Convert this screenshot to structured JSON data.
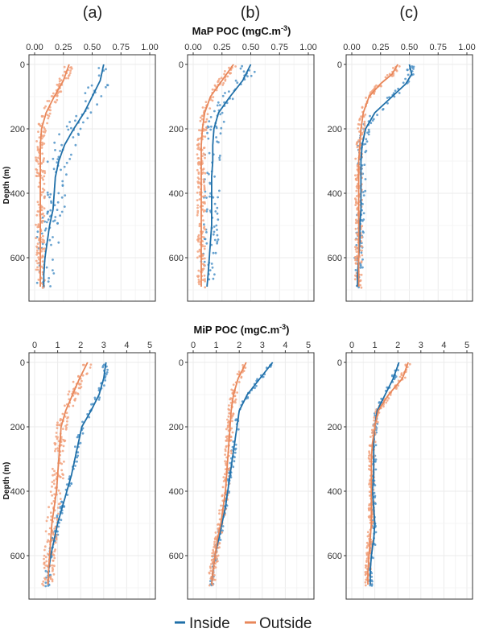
{
  "panel_labels": [
    "(a)",
    "(b)",
    "(c)"
  ],
  "rows": [
    {
      "title": "MaP POC (mgC.m",
      "title_sup": "-3",
      "title_close": ")"
    },
    {
      "title": "MiP POC (mgC.m",
      "title_sup": "-3",
      "title_close": ")"
    }
  ],
  "y_axis_label": "Depth (m)",
  "legend": [
    {
      "label": "Inside",
      "color": "#1f6fa8"
    },
    {
      "label": "Outside",
      "color": "#e8875a"
    }
  ],
  "colors": {
    "inside_line": "#1f6fa8",
    "outside_line": "#e8875a",
    "inside_points": "#4f93c8",
    "outside_points": "#f2a37f",
    "grid": "#ebebeb",
    "frame": "#333333"
  },
  "chart_data": [
    {
      "id": "MaP-a",
      "type": "scatter",
      "row": 0,
      "col": 0,
      "xlabel": "MaP POC (mgC.m-3)",
      "ylabel": "Depth (m)",
      "xlim": [
        0,
        1
      ],
      "ylim": [
        0,
        700
      ],
      "y_reversed": true,
      "xticks": [
        0,
        0.25,
        0.5,
        0.75,
        1
      ],
      "xtick_labels": [
        "0.00",
        "0.25",
        "0.50",
        "0.75",
        "1.00"
      ],
      "yticks": [
        0,
        200,
        400,
        600
      ],
      "ytick_labels": [
        "0",
        "200",
        "400",
        "600"
      ],
      "series": [
        {
          "name": "Inside",
          "line": {
            "depth": [
              0,
              50,
              100,
              150,
              200,
              250,
              300,
              350,
              400,
              450,
              500,
              550,
              600,
              650,
              690
            ],
            "value": [
              0.6,
              0.57,
              0.5,
              0.43,
              0.34,
              0.26,
              0.21,
              0.18,
              0.17,
              0.16,
              0.13,
              0.11,
              0.09,
              0.08,
              0.08
            ],
            "spread": 0.1
          }
        },
        {
          "name": "Outside",
          "line": {
            "depth": [
              0,
              50,
              100,
              150,
              200,
              250,
              300,
              350,
              400,
              450,
              500,
              550,
              600,
              650,
              690
            ],
            "value": [
              0.3,
              0.25,
              0.17,
              0.1,
              0.06,
              0.05,
              0.05,
              0.05,
              0.05,
              0.05,
              0.05,
              0.05,
              0.05,
              0.05,
              0.05
            ],
            "spread": 0.04
          }
        }
      ]
    },
    {
      "id": "MaP-b",
      "type": "scatter",
      "row": 0,
      "col": 1,
      "xlabel": "MaP POC (mgC.m-3)",
      "ylabel": "Depth (m)",
      "xlim": [
        0,
        1
      ],
      "ylim": [
        0,
        700
      ],
      "y_reversed": true,
      "xticks": [
        0,
        0.25,
        0.5,
        0.75,
        1
      ],
      "xtick_labels": [
        "0.00",
        "0.25",
        "0.50",
        "0.75",
        "1.00"
      ],
      "yticks": [
        0,
        200,
        400,
        600
      ],
      "ytick_labels": [
        "0",
        "200",
        "400",
        "600"
      ],
      "series": [
        {
          "name": "Inside",
          "line": {
            "depth": [
              0,
              50,
              100,
              150,
              200,
              250,
              300,
              350,
              400,
              450,
              500,
              550,
              600,
              650,
              690
            ],
            "value": [
              0.5,
              0.43,
              0.32,
              0.22,
              0.18,
              0.17,
              0.17,
              0.16,
              0.16,
              0.16,
              0.16,
              0.15,
              0.14,
              0.13,
              0.12
            ],
            "spread": 0.07
          }
        },
        {
          "name": "Outside",
          "line": {
            "depth": [
              0,
              50,
              100,
              150,
              200,
              250,
              300,
              350,
              400,
              450,
              500,
              550,
              600,
              650,
              690
            ],
            "value": [
              0.35,
              0.25,
              0.15,
              0.1,
              0.08,
              0.07,
              0.07,
              0.07,
              0.07,
              0.07,
              0.07,
              0.07,
              0.07,
              0.07,
              0.07
            ],
            "spread": 0.035
          }
        }
      ]
    },
    {
      "id": "MaP-c",
      "type": "scatter",
      "row": 0,
      "col": 2,
      "xlabel": "MaP POC (mgC.m-3)",
      "ylabel": "Depth (m)",
      "xlim": [
        0,
        1
      ],
      "ylim": [
        0,
        700
      ],
      "y_reversed": true,
      "xticks": [
        0,
        0.25,
        0.5,
        0.75,
        1
      ],
      "xtick_labels": [
        "0.00",
        "0.25",
        "0.50",
        "0.75",
        "1.00"
      ],
      "yticks": [
        0,
        200,
        400,
        600
      ],
      "ytick_labels": [
        "0",
        "200",
        "400",
        "600"
      ],
      "series": [
        {
          "name": "Inside",
          "line": {
            "depth": [
              0,
              30,
              60,
              100,
              150,
              200,
              250,
              300,
              350,
              400,
              450,
              500,
              550,
              600,
              650,
              690
            ],
            "value": [
              0.5,
              0.52,
              0.47,
              0.35,
              0.2,
              0.12,
              0.09,
              0.08,
              0.08,
              0.08,
              0.08,
              0.07,
              0.07,
              0.06,
              0.05,
              0.05
            ],
            "spread": 0.04
          }
        },
        {
          "name": "Outside",
          "line": {
            "depth": [
              0,
              30,
              60,
              100,
              150,
              200,
              250,
              300,
              350,
              400,
              450,
              500,
              550,
              600,
              650,
              690
            ],
            "value": [
              0.4,
              0.35,
              0.25,
              0.15,
              0.1,
              0.08,
              0.07,
              0.06,
              0.06,
              0.06,
              0.06,
              0.06,
              0.06,
              0.06,
              0.06,
              0.06
            ],
            "spread": 0.03
          }
        }
      ]
    },
    {
      "id": "MiP-a",
      "type": "scatter",
      "row": 1,
      "col": 0,
      "xlabel": "MiP POC (mgC.m-3)",
      "ylabel": "Depth (m)",
      "xlim": [
        0,
        5
      ],
      "ylim": [
        0,
        700
      ],
      "y_reversed": true,
      "xticks": [
        0,
        1,
        2,
        3,
        4,
        5
      ],
      "xtick_labels": [
        "0",
        "1",
        "2",
        "3",
        "4",
        "5"
      ],
      "yticks": [
        0,
        200,
        400,
        600
      ],
      "ytick_labels": [
        "0",
        "200",
        "400",
        "600"
      ],
      "series": [
        {
          "name": "Inside",
          "line": {
            "depth": [
              0,
              50,
              100,
              150,
              200,
              250,
              300,
              350,
              400,
              450,
              500,
              550,
              600,
              650,
              690
            ],
            "value": [
              3.1,
              3.0,
              2.8,
              2.45,
              2.05,
              1.9,
              1.75,
              1.6,
              1.4,
              1.2,
              1.0,
              0.85,
              0.7,
              0.6,
              0.58
            ],
            "spread": 0.12
          }
        },
        {
          "name": "Outside",
          "line": {
            "depth": [
              0,
              50,
              100,
              150,
              200,
              250,
              300,
              350,
              400,
              450,
              500,
              550,
              600,
              650,
              690
            ],
            "value": [
              2.3,
              1.95,
              1.65,
              1.35,
              1.15,
              1.1,
              1.05,
              1.0,
              0.95,
              0.85,
              0.75,
              0.7,
              0.65,
              0.6,
              0.58
            ],
            "spread": 0.25
          }
        }
      ]
    },
    {
      "id": "MiP-b",
      "type": "scatter",
      "row": 1,
      "col": 1,
      "xlabel": "MiP POC (mgC.m-3)",
      "ylabel": "Depth (m)",
      "xlim": [
        0,
        5
      ],
      "ylim": [
        0,
        700
      ],
      "y_reversed": true,
      "xticks": [
        0,
        1,
        2,
        3,
        4,
        5
      ],
      "xtick_labels": [
        "0",
        "1",
        "2",
        "3",
        "4",
        "5"
      ],
      "yticks": [
        0,
        200,
        400,
        600
      ],
      "ytick_labels": [
        "0",
        "200",
        "400",
        "600"
      ],
      "series": [
        {
          "name": "Inside",
          "line": {
            "depth": [
              0,
              50,
              100,
              150,
              200,
              250,
              300,
              350,
              400,
              450,
              500,
              550,
              600,
              650,
              690
            ],
            "value": [
              3.45,
              2.9,
              2.35,
              2.0,
              1.9,
              1.8,
              1.7,
              1.6,
              1.5,
              1.4,
              1.25,
              1.1,
              0.95,
              0.85,
              0.8
            ],
            "spread": 0.1
          }
        },
        {
          "name": "Outside",
          "line": {
            "depth": [
              0,
              50,
              100,
              150,
              200,
              250,
              300,
              350,
              400,
              450,
              500,
              550,
              600,
              650,
              690
            ],
            "value": [
              2.3,
              1.95,
              1.75,
              1.65,
              1.6,
              1.55,
              1.5,
              1.45,
              1.4,
              1.3,
              1.2,
              1.05,
              0.95,
              0.85,
              0.8
            ],
            "spread": 0.15
          }
        }
      ]
    },
    {
      "id": "MiP-c",
      "type": "scatter",
      "row": 1,
      "col": 2,
      "xlabel": "MiP POC (mgC.m-3)",
      "ylabel": "Depth (m)",
      "xlim": [
        0,
        5
      ],
      "ylim": [
        0,
        700
      ],
      "y_reversed": true,
      "xticks": [
        0,
        1,
        2,
        3,
        4,
        5
      ],
      "xtick_labels": [
        "0",
        "1",
        "2",
        "3",
        "4",
        "5"
      ],
      "yticks": [
        0,
        200,
        400,
        600
      ],
      "ytick_labels": [
        "0",
        "200",
        "400",
        "600"
      ],
      "series": [
        {
          "name": "Inside",
          "line": {
            "depth": [
              0,
              50,
              100,
              150,
              200,
              250,
              300,
              350,
              400,
              450,
              500,
              550,
              600,
              650,
              690
            ],
            "value": [
              2.05,
              1.8,
              1.45,
              1.1,
              1.0,
              0.95,
              0.95,
              0.95,
              0.9,
              0.95,
              1.0,
              0.95,
              0.85,
              0.8,
              0.8
            ],
            "spread": 0.1
          }
        },
        {
          "name": "Outside",
          "line": {
            "depth": [
              0,
              50,
              100,
              150,
              200,
              250,
              300,
              350,
              400,
              450,
              500,
              550,
              600,
              650,
              690
            ],
            "value": [
              2.45,
              2.2,
              1.6,
              1.15,
              1.0,
              0.9,
              0.85,
              0.85,
              0.85,
              0.85,
              0.85,
              0.8,
              0.75,
              0.7,
              0.7
            ],
            "spread": 0.12
          }
        }
      ]
    }
  ]
}
